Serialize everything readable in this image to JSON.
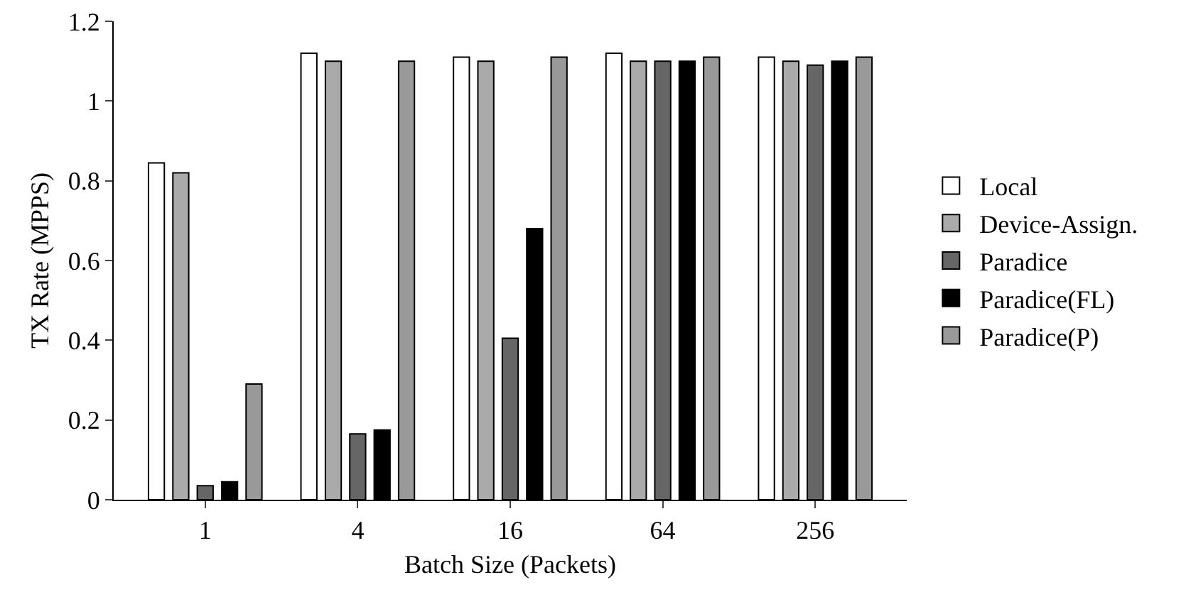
{
  "chart_data": {
    "type": "bar",
    "xlabel": "Batch Size (Packets)",
    "ylabel": "TX Rate (MPPS)",
    "categories": [
      "1",
      "4",
      "16",
      "64",
      "256"
    ],
    "series": [
      {
        "name": "Local",
        "color": "#ffffff",
        "values": [
          0.845,
          1.12,
          1.11,
          1.12,
          1.11
        ]
      },
      {
        "name": "Device-Assign.",
        "color": "#aaaaaa",
        "values": [
          0.82,
          1.1,
          1.1,
          1.1,
          1.1
        ]
      },
      {
        "name": "Paradice",
        "color": "#666666",
        "values": [
          0.035,
          0.165,
          0.405,
          1.1,
          1.09
        ]
      },
      {
        "name": "Paradice(FL)",
        "color": "#000000",
        "values": [
          0.045,
          0.175,
          0.68,
          1.1,
          1.1
        ]
      },
      {
        "name": "Paradice(P)",
        "color": "#999999",
        "values": [
          0.29,
          1.1,
          1.11,
          1.11,
          1.11
        ]
      }
    ],
    "ylim": [
      0,
      1.2
    ],
    "yticks": [
      0,
      0.2,
      0.4,
      0.6,
      0.8,
      1,
      1.2
    ],
    "grid": false,
    "legend": "right"
  }
}
